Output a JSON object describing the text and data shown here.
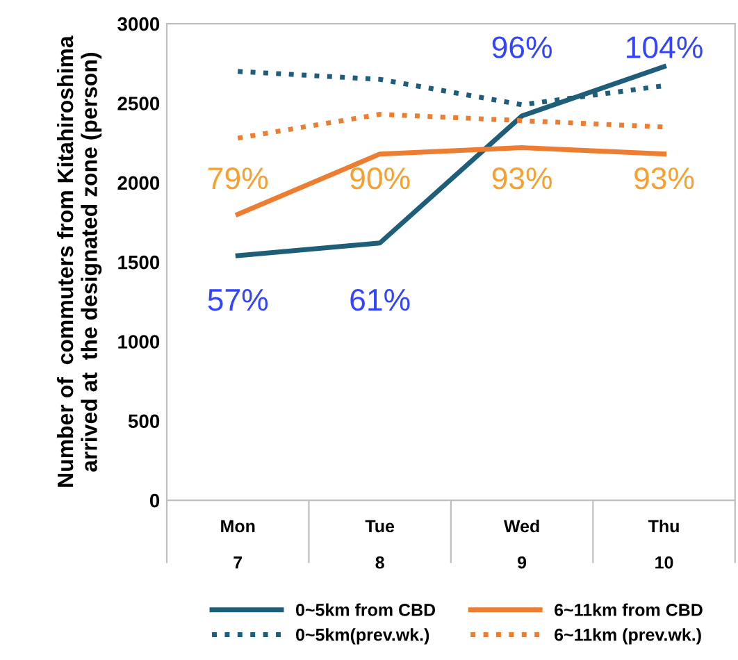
{
  "chart_data": {
    "type": "line",
    "ylabel": "Number of  commuters from Kitahiroshima\narrived at  the designated zone (person)",
    "categories": [
      "Mon\n7",
      "Tue\n8",
      "Wed\n9",
      "Thu\n10"
    ],
    "series": [
      {
        "name": "0~5km from CBD",
        "color": "#1f5e78",
        "values": [
          1540,
          1620,
          2420,
          2730
        ],
        "line_style": "solid"
      },
      {
        "name": "0~5km(prev.wk.)",
        "color": "#1f5e78",
        "values": [
          2700,
          2650,
          2490,
          2610
        ],
        "line_style": "dotted"
      },
      {
        "name": "6~11km from CBD",
        "color": "#ed7d31",
        "values": [
          1800,
          2180,
          2220,
          2180
        ],
        "line_style": "solid"
      },
      {
        "name": "6~11km (prev.wk.)",
        "color": "#ed7d31",
        "values": [
          2280,
          2430,
          2390,
          2350
        ],
        "line_style": "dotted"
      }
    ],
    "annotations": [
      "57%",
      "61%",
      "96%",
      "104%",
      "79%",
      "90%",
      "93%",
      "93%"
    ],
    "ylim": [
      0,
      3000
    ],
    "yticks": [
      0,
      500,
      1000,
      1500,
      2000,
      2500,
      3000
    ],
    "grid": false,
    "legend": "bottom",
    "marker": "none"
  }
}
